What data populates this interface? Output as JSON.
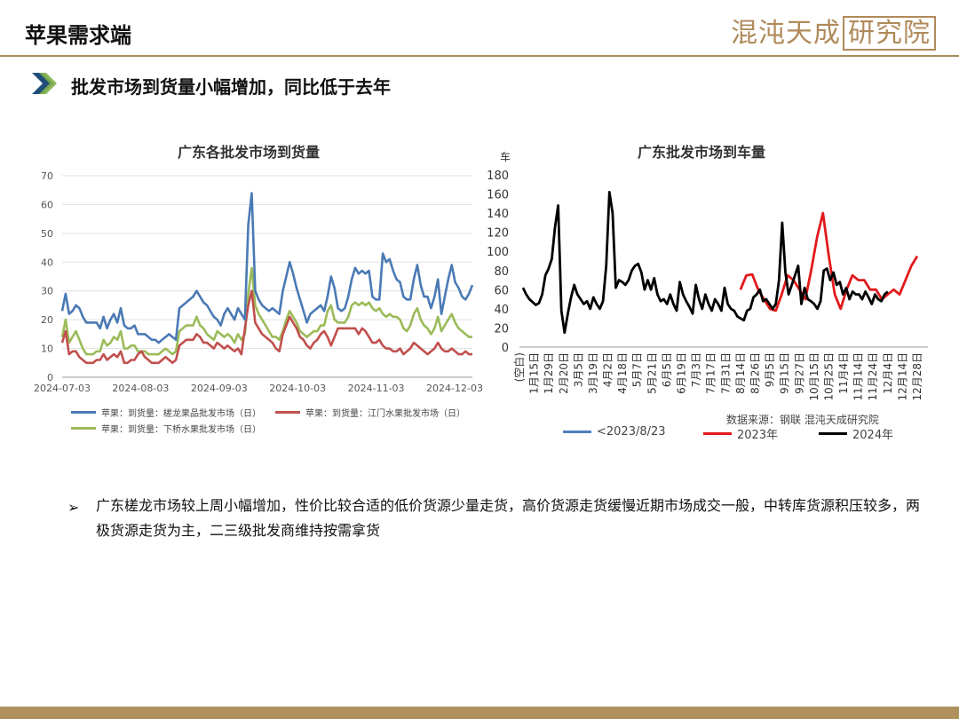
{
  "header": {
    "title": "苹果需求端",
    "logo_main": "混沌天成",
    "logo_box": "研究院"
  },
  "subtitle": "批发市场到货量小幅增加，同比低于去年",
  "source": "数据来源：钢联   混沌天成研究院",
  "paragraph": {
    "bullet": "➢",
    "text": "广东槎龙市场较上周小幅增加，性价比较合适的低价货源少量走货，高价货源走货缓慢近期市场成交一般，中转库货源积压较多，两极货源走货为主，二三级批发商维持按需拿货"
  },
  "colors": {
    "blue": "#4a7ab5",
    "red": "#c0504d",
    "green": "#9bbb59",
    "red2": "#e31a1c",
    "black": "#000000",
    "blue2": "#4f81bd"
  },
  "chart_data": [
    {
      "type": "line",
      "title": "广东各批发市场到货量",
      "xlabel": "",
      "ylabel": "",
      "ylim": [
        0,
        70
      ],
      "yticks": [
        0,
        10,
        20,
        30,
        40,
        50,
        60,
        70
      ],
      "xticks": [
        "2024-07-03",
        "2024-08-03",
        "2024-09-03",
        "2024-10-03",
        "2024-11-03",
        "2024-12-03"
      ],
      "grid": true,
      "legend": "bottom",
      "series": [
        {
          "name": "苹果：到货量：槎龙果品批发市场（日）",
          "color": "#4a7ab5",
          "values": [
            23,
            29,
            22,
            23,
            25,
            24,
            21,
            19,
            19,
            19,
            19,
            17,
            21,
            17,
            20,
            22,
            19,
            24,
            18,
            17,
            17,
            18,
            15,
            15,
            15,
            14,
            13,
            13,
            12,
            13,
            14,
            15,
            14,
            13,
            24,
            25,
            26,
            27,
            28,
            30,
            28,
            26,
            25,
            23,
            21,
            20,
            18,
            22,
            24,
            22,
            20,
            24,
            22,
            20,
            53,
            64,
            30,
            27,
            25,
            24,
            23,
            24,
            23,
            22,
            30,
            35,
            40,
            36,
            31,
            27,
            23,
            19,
            22,
            23,
            24,
            25,
            23,
            28,
            35,
            31,
            24,
            23,
            24,
            28,
            34,
            38,
            36,
            37,
            36,
            37,
            28,
            27,
            27,
            43,
            40,
            41,
            37,
            34,
            33,
            28,
            27,
            27,
            34,
            39,
            32,
            28,
            28,
            24,
            28,
            34,
            22,
            28,
            34,
            39,
            33,
            31,
            28,
            27,
            29,
            32
          ]
        },
        {
          "name": "苹果：到货量：江门水果批发市场（日）",
          "color": "#c0504d",
          "values": [
            12,
            16,
            8,
            9,
            9,
            7,
            6,
            5,
            5,
            5,
            6,
            6,
            8,
            6,
            7,
            8,
            7,
            9,
            5,
            5,
            6,
            6,
            8,
            9,
            7,
            6,
            5,
            5,
            5,
            6,
            7,
            6,
            5,
            6,
            11,
            12,
            13,
            13,
            13,
            15,
            14,
            12,
            12,
            11,
            10,
            12,
            11,
            10,
            11,
            10,
            9,
            10,
            8,
            17,
            25,
            30,
            19,
            17,
            15,
            14,
            13,
            12,
            10,
            9,
            15,
            18,
            21,
            19,
            17,
            14,
            13,
            11,
            10,
            12,
            13,
            15,
            16,
            14,
            11,
            14,
            17,
            17,
            17,
            17,
            17,
            17,
            15,
            17,
            16,
            14,
            12,
            12,
            13,
            11,
            10,
            10,
            9,
            9,
            10,
            8,
            9,
            10,
            12,
            11,
            10,
            9,
            8,
            9,
            10,
            12,
            10,
            9,
            9,
            10,
            9,
            8,
            8,
            9,
            8,
            8
          ]
        },
        {
          "name": "苹果：到货量：下桥水果批发市场（日）",
          "color": "#9bbb59",
          "values": [
            14,
            20,
            12,
            14,
            16,
            13,
            10,
            8,
            8,
            8,
            9,
            9,
            13,
            11,
            12,
            14,
            13,
            16,
            10,
            10,
            11,
            11,
            9,
            9,
            9,
            8,
            8,
            8,
            8,
            9,
            10,
            9,
            8,
            9,
            16,
            17,
            18,
            18,
            18,
            21,
            18,
            17,
            15,
            14,
            13,
            16,
            15,
            14,
            15,
            14,
            12,
            15,
            13,
            15,
            29,
            38,
            25,
            22,
            20,
            18,
            16,
            14,
            14,
            13,
            16,
            20,
            23,
            21,
            19,
            16,
            15,
            14,
            15,
            16,
            16,
            18,
            18,
            23,
            25,
            20,
            19,
            19,
            19,
            21,
            25,
            26,
            25,
            26,
            25,
            26,
            24,
            23,
            24,
            22,
            21,
            22,
            21,
            21,
            20,
            17,
            16,
            18,
            22,
            24,
            20,
            18,
            17,
            15,
            17,
            21,
            16,
            18,
            20,
            22,
            19,
            17,
            16,
            15,
            14,
            14
          ]
        }
      ]
    },
    {
      "type": "line",
      "title": "广东批发市场到车量",
      "ylabel": "车",
      "ylim": [
        0,
        180
      ],
      "yticks": [
        0,
        20,
        40,
        60,
        80,
        100,
        120,
        140,
        160,
        180
      ],
      "xticks": [
        "(空白)",
        "1月15日",
        "1月29日",
        "2月20日",
        "3月5日",
        "3月19日",
        "4月2日",
        "4月18日",
        "5月7日",
        "5月21日",
        "6月5日",
        "6月19日",
        "7月3日",
        "7月17日",
        "7月31日",
        "8月14日",
        "8月26日",
        "9月5日",
        "9月15日",
        "9月27日",
        "10月15日",
        "10月25日",
        "11月4日",
        "11月14日",
        "11月24日",
        "12月4日",
        "12月14日",
        "12月28日"
      ],
      "legend": "bottom",
      "series": [
        {
          "name": "<2023/8/23",
          "color": "#4f81bd",
          "values": []
        },
        {
          "name": "2023年",
          "color": "#e31a1c",
          "x": [
            0.0,
            0.4,
            0.8,
            1.2,
            1.6,
            2.0,
            2.4,
            2.8,
            3.2,
            3.6,
            4.0,
            4.4,
            4.8,
            5.2,
            5.6,
            6.0,
            6.4,
            6.8,
            7.2,
            7.6,
            8.0,
            8.4,
            8.8,
            9.2,
            9.6,
            10.0,
            10.4,
            10.8,
            11.2,
            11.6,
            12.0
          ],
          "values": [
            60,
            75,
            76,
            60,
            50,
            40,
            38,
            55,
            75,
            70,
            60,
            50,
            80,
            115,
            140,
            95,
            55,
            40,
            60,
            75,
            70,
            70,
            60,
            60,
            50,
            55,
            60,
            55,
            70,
            85,
            95
          ],
          "x_offset_label": "8月14日"
        },
        {
          "name": "2024年",
          "color": "#000000",
          "values": [
            62,
            55,
            50,
            47,
            44,
            46,
            55,
            75,
            82,
            92,
            125,
            148,
            38,
            15,
            35,
            52,
            65,
            55,
            50,
            45,
            48,
            40,
            52,
            45,
            40,
            48,
            85,
            162,
            140,
            62,
            70,
            68,
            65,
            70,
            80,
            85,
            87,
            78,
            60,
            70,
            60,
            72,
            55,
            48,
            50,
            45,
            55,
            45,
            38,
            68,
            55,
            48,
            42,
            35,
            65,
            50,
            40,
            55,
            45,
            38,
            50,
            45,
            38,
            62,
            45,
            40,
            38,
            32,
            30,
            28,
            38,
            40,
            52,
            55,
            60,
            48,
            50,
            45,
            40,
            45,
            70,
            130,
            78,
            55,
            65,
            75,
            85,
            45,
            62,
            50,
            48,
            45,
            40,
            48,
            80,
            82,
            70,
            78,
            65,
            68,
            55,
            62,
            50,
            58,
            55,
            55,
            50,
            58,
            52,
            45,
            55,
            50,
            48,
            55,
            58
          ]
        }
      ]
    }
  ]
}
